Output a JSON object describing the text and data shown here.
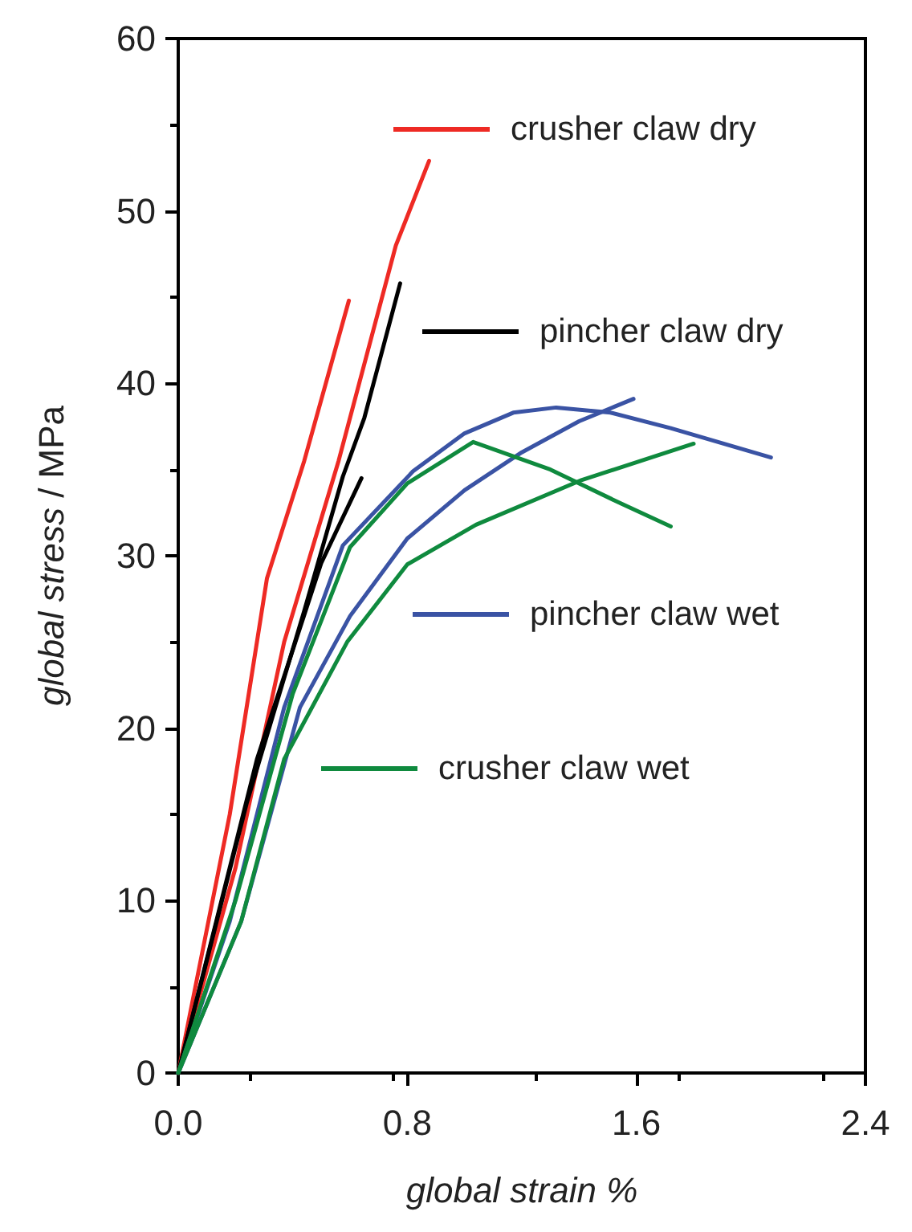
{
  "chart_data": {
    "type": "line",
    "xlabel": "global strain %",
    "ylabel": "global stress / MPa",
    "xlim": [
      0,
      2.4
    ],
    "xticks": [
      {
        "value": 0,
        "label": "0.0"
      },
      0.8,
      1.6,
      2.4
    ],
    "ylim": [
      0,
      60
    ],
    "yticks": [
      0,
      10,
      20,
      30,
      40,
      50,
      60
    ],
    "grid": false,
    "legend": "right",
    "marker": "none",
    "line_style": "solid",
    "series": [
      {
        "name": "crusher claw dry",
        "color": "#ee2a24",
        "x": [
          0,
          0.2,
          0.37,
          0.56,
          0.76,
          0.876
        ],
        "values": [
          0,
          11.9,
          25,
          35.5,
          48,
          52.9
        ]
      },
      {
        "color": "#ee2a24",
        "x": [
          0,
          0.18,
          0.31,
          0.44,
          0.596
        ],
        "values": [
          0,
          15,
          28.7,
          35.5,
          44.8
        ]
      },
      {
        "name": "pincher claw dry",
        "color": "#000000",
        "x": [
          0,
          0.24,
          0.44,
          0.575,
          0.65,
          0.775
        ],
        "values": [
          0,
          15.7,
          26.8,
          34.6,
          38,
          45.8
        ]
      },
      {
        "color": "#000000",
        "x": [
          0,
          0.275,
          0.5,
          0.64
        ],
        "values": [
          0,
          18.2,
          29.6,
          34.5
        ]
      },
      {
        "name": "pincher claw wet",
        "color": "#3a53a4",
        "x": [
          0,
          0.18,
          0.37,
          0.575,
          0.82,
          1.0,
          1.17,
          1.32,
          1.51,
          1.72,
          2.07
        ],
        "values": [
          0,
          8.8,
          21.2,
          30.6,
          34.9,
          37.1,
          38.3,
          38.6,
          38.3,
          37.4,
          35.7
        ]
      },
      {
        "color": "#3a53a4",
        "x": [
          0,
          0.22,
          0.425,
          0.6,
          0.8,
          1.0,
          1.2,
          1.4,
          1.59
        ],
        "values": [
          0,
          8.8,
          21.2,
          26.5,
          31,
          33.8,
          36,
          37.8,
          39.1
        ]
      },
      {
        "name": "crusher claw wet",
        "color": "#0f8a3e",
        "x": [
          0,
          0.2,
          0.4,
          0.6,
          0.8,
          1.03,
          1.3,
          1.55,
          1.72
        ],
        "values": [
          0,
          10,
          22,
          30.5,
          34.2,
          36.6,
          35,
          33,
          31.7
        ]
      },
      {
        "color": "#0f8a3e",
        "x": [
          0,
          0.22,
          0.37,
          0.59,
          0.8,
          1.04,
          1.41,
          1.8
        ],
        "values": [
          0,
          8.8,
          18.2,
          25,
          29.5,
          31.8,
          34.4,
          36.5
        ]
      }
    ]
  }
}
